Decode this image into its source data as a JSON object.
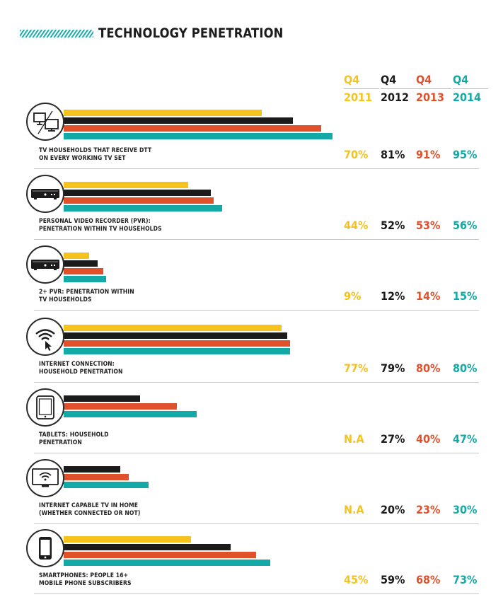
{
  "page": {
    "title": "TECHNOLOGY PENETRATION"
  },
  "colors": {
    "2011": "#f6c21e",
    "2012": "#1b1b1b",
    "2013": "#e0512b",
    "2014": "#12a9a6",
    "rule": "#c7c7c7"
  },
  "chart_data": {
    "type": "bar",
    "orientation": "horizontal",
    "series": [
      {
        "key": "2011",
        "quarter": "Q4",
        "year": "2011",
        "name": "Q4 2011",
        "color": "#f6c21e"
      },
      {
        "key": "2012",
        "quarter": "Q4",
        "year": "2012",
        "name": "Q4 2012",
        "color": "#1b1b1b"
      },
      {
        "key": "2013",
        "quarter": "Q4",
        "year": "2013",
        "name": "Q4 2013",
        "color": "#e0512b"
      },
      {
        "key": "2014",
        "quarter": "Q4",
        "year": "2014",
        "name": "Q4 2014",
        "color": "#12a9a6"
      }
    ],
    "categories": [
      {
        "id": "dtt",
        "icon": "tv-sets-icon",
        "label": "TV HOUSEHOLDS THAT RECEIVE DTT\nON EVERY WORKING TV SET",
        "values": [
          70,
          81,
          91,
          95
        ],
        "display": [
          "70%",
          "81%",
          "91%",
          "95%"
        ]
      },
      {
        "id": "pvr",
        "icon": "pvr-box-icon",
        "label": "PERSONAL VIDEO RECORDER (PVR):\nPENETRATION WITHIN TV HOUSEHOLDS",
        "values": [
          44,
          52,
          53,
          56
        ],
        "display": [
          "44%",
          "52%",
          "53%",
          "56%"
        ]
      },
      {
        "id": "pvr2",
        "icon": "pvr-box-icon",
        "label": "2+ PVR: PENETRATION WITHIN\nTV HOUSEHOLDS",
        "values": [
          9,
          12,
          14,
          15
        ],
        "display": [
          "9%",
          "12%",
          "14%",
          "15%"
        ]
      },
      {
        "id": "internet",
        "icon": "wifi-cursor-icon",
        "label": "INTERNET CONNECTION:\nHOUSEHOLD PENETRATION",
        "values": [
          77,
          79,
          80,
          80
        ],
        "display": [
          "77%",
          "79%",
          "80%",
          "80%"
        ]
      },
      {
        "id": "tablets",
        "icon": "tablet-icon",
        "label": "TABLETS: HOUSEHOLD\nPENETRATION",
        "values": [
          null,
          27,
          40,
          47
        ],
        "display": [
          "N.A",
          "27%",
          "40%",
          "47%"
        ]
      },
      {
        "id": "smarttv",
        "icon": "wifi-tv-icon",
        "label": "INTERNET CAPABLE TV IN HOME\n(WHETHER CONNECTED OR NOT)",
        "values": [
          null,
          20,
          23,
          30
        ],
        "display": [
          "N.A",
          "20%",
          "23%",
          "30%"
        ]
      },
      {
        "id": "smartphones",
        "icon": "smartphone-icon",
        "label": "SMARTPHONES: PEOPLE 16+\nMOBILE PHONE SUBSCRIBERS",
        "values": [
          45,
          59,
          68,
          73
        ],
        "display": [
          "45%",
          "59%",
          "68%",
          "73%"
        ]
      }
    ],
    "xlim": [
      0,
      100
    ],
    "units": "%",
    "grid": false,
    "legend": "top-right"
  }
}
